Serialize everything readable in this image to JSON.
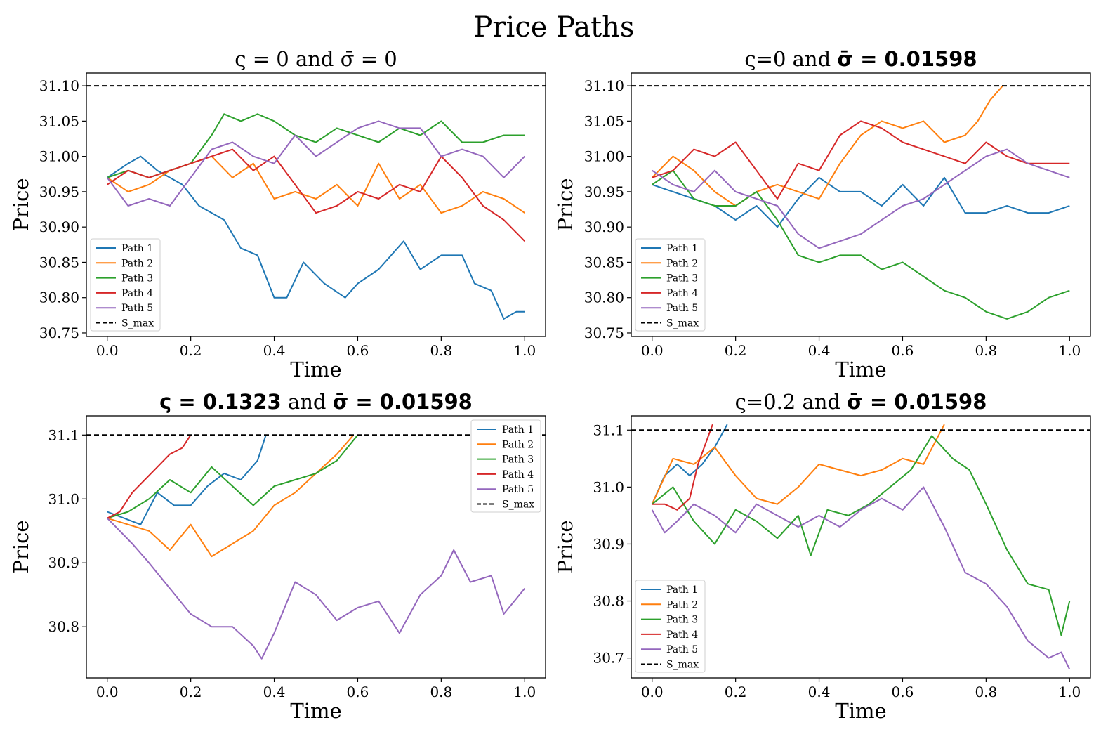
{
  "figure": {
    "title": "Price Paths"
  },
  "colors": {
    "Path 1": "#1f77b4",
    "Path 2": "#ff7f0e",
    "Path 3": "#2ca02c",
    "Path 4": "#d62728",
    "Path 5": "#9467bd",
    "S_max": "#000000"
  },
  "chart_data": [
    {
      "type": "line",
      "title_parts": [
        {
          "t": "ς = 0",
          "bold": false
        },
        {
          "t": " and ",
          "bold": false
        },
        {
          "t": "σ̄ = 0",
          "bold": false
        }
      ],
      "xlabel": "Time",
      "ylabel": "Price",
      "xlim": [
        -0.05,
        1.05
      ],
      "ylim": [
        30.745,
        31.118
      ],
      "xticks": [
        0.0,
        0.2,
        0.4,
        0.6,
        0.8,
        1.0
      ],
      "yticks": [
        30.75,
        30.8,
        30.85,
        30.9,
        30.95,
        31.0,
        31.05,
        31.1
      ],
      "ytick_decimals": 2,
      "s_max": 31.1,
      "legend": "lower-left",
      "series": [
        {
          "name": "Path 1",
          "x": [
            0,
            0.05,
            0.08,
            0.12,
            0.18,
            0.22,
            0.28,
            0.32,
            0.36,
            0.4,
            0.43,
            0.47,
            0.52,
            0.57,
            0.6,
            0.65,
            0.71,
            0.75,
            0.8,
            0.85,
            0.88,
            0.92,
            0.95,
            0.98,
            1.0
          ],
          "y": [
            30.97,
            30.99,
            31.0,
            30.98,
            30.96,
            30.93,
            30.91,
            30.87,
            30.86,
            30.8,
            30.8,
            30.85,
            30.82,
            30.8,
            30.82,
            30.84,
            30.88,
            30.84,
            30.86,
            30.86,
            30.82,
            30.81,
            30.77,
            30.78,
            30.78
          ]
        },
        {
          "name": "Path 2",
          "x": [
            0,
            0.05,
            0.1,
            0.15,
            0.2,
            0.25,
            0.3,
            0.35,
            0.4,
            0.45,
            0.5,
            0.55,
            0.6,
            0.65,
            0.7,
            0.75,
            0.8,
            0.85,
            0.9,
            0.95,
            1.0
          ],
          "y": [
            30.97,
            30.95,
            30.96,
            30.98,
            30.99,
            31.0,
            30.97,
            30.99,
            30.94,
            30.95,
            30.94,
            30.96,
            30.93,
            30.99,
            30.94,
            30.96,
            30.92,
            30.93,
            30.95,
            30.94,
            30.92
          ]
        },
        {
          "name": "Path 3",
          "x": [
            0,
            0.05,
            0.1,
            0.15,
            0.2,
            0.25,
            0.28,
            0.32,
            0.36,
            0.4,
            0.45,
            0.5,
            0.55,
            0.6,
            0.65,
            0.7,
            0.75,
            0.8,
            0.85,
            0.9,
            0.95,
            1.0
          ],
          "y": [
            30.97,
            30.98,
            30.97,
            30.98,
            30.99,
            31.03,
            31.06,
            31.05,
            31.06,
            31.05,
            31.03,
            31.02,
            31.04,
            31.03,
            31.02,
            31.04,
            31.03,
            31.05,
            31.02,
            31.02,
            31.03,
            31.03
          ]
        },
        {
          "name": "Path 4",
          "x": [
            0,
            0.05,
            0.1,
            0.15,
            0.2,
            0.25,
            0.3,
            0.35,
            0.4,
            0.45,
            0.5,
            0.55,
            0.6,
            0.65,
            0.7,
            0.75,
            0.8,
            0.85,
            0.9,
            0.95,
            1.0
          ],
          "y": [
            30.96,
            30.98,
            30.97,
            30.98,
            30.99,
            31.0,
            31.01,
            30.98,
            31.0,
            30.96,
            30.92,
            30.93,
            30.95,
            30.94,
            30.96,
            30.95,
            31.0,
            30.97,
            30.93,
            30.91,
            30.88
          ]
        },
        {
          "name": "Path 5",
          "x": [
            0,
            0.05,
            0.1,
            0.15,
            0.2,
            0.25,
            0.3,
            0.35,
            0.4,
            0.45,
            0.5,
            0.55,
            0.6,
            0.65,
            0.7,
            0.75,
            0.8,
            0.85,
            0.9,
            0.95,
            1.0
          ],
          "y": [
            30.97,
            30.93,
            30.94,
            30.93,
            30.97,
            31.01,
            31.02,
            31.0,
            30.99,
            31.03,
            31.0,
            31.02,
            31.04,
            31.05,
            31.04,
            31.04,
            31.0,
            31.01,
            31.0,
            30.97,
            31.0
          ]
        }
      ]
    },
    {
      "type": "line",
      "title_parts": [
        {
          "t": "ς=0",
          "bold": false
        },
        {
          "t": " and ",
          "bold": false
        },
        {
          "t": "σ̄ = 0.01598",
          "bold": true
        }
      ],
      "xlabel": "Time",
      "ylabel": "Price",
      "xlim": [
        -0.05,
        1.05
      ],
      "ylim": [
        30.745,
        31.118
      ],
      "xticks": [
        0.0,
        0.2,
        0.4,
        0.6,
        0.8,
        1.0
      ],
      "yticks": [
        30.75,
        30.8,
        30.85,
        30.9,
        30.95,
        31.0,
        31.05,
        31.1
      ],
      "ytick_decimals": 2,
      "s_max": 31.1,
      "legend": "lower-left",
      "series": [
        {
          "name": "Path 1",
          "x": [
            0,
            0.05,
            0.1,
            0.15,
            0.2,
            0.25,
            0.3,
            0.35,
            0.4,
            0.45,
            0.5,
            0.55,
            0.6,
            0.65,
            0.7,
            0.75,
            0.8,
            0.85,
            0.9,
            0.95,
            1.0
          ],
          "y": [
            30.96,
            30.95,
            30.94,
            30.93,
            30.91,
            30.93,
            30.9,
            30.94,
            30.97,
            30.95,
            30.95,
            30.93,
            30.96,
            30.93,
            30.97,
            30.92,
            30.92,
            30.93,
            30.92,
            30.92,
            30.93
          ]
        },
        {
          "name": "Path 2",
          "x": [
            0,
            0.05,
            0.1,
            0.15,
            0.2,
            0.25,
            0.3,
            0.35,
            0.4,
            0.45,
            0.5,
            0.55,
            0.6,
            0.65,
            0.7,
            0.75,
            0.78,
            0.81,
            0.84
          ],
          "y": [
            30.97,
            31.0,
            30.98,
            30.95,
            30.93,
            30.95,
            30.96,
            30.95,
            30.94,
            30.99,
            31.03,
            31.05,
            31.04,
            31.05,
            31.02,
            31.03,
            31.05,
            31.08,
            31.1
          ]
        },
        {
          "name": "Path 3",
          "x": [
            0,
            0.05,
            0.1,
            0.15,
            0.2,
            0.25,
            0.3,
            0.35,
            0.4,
            0.45,
            0.5,
            0.55,
            0.6,
            0.65,
            0.7,
            0.75,
            0.8,
            0.85,
            0.9,
            0.95,
            1.0
          ],
          "y": [
            30.96,
            30.98,
            30.94,
            30.93,
            30.93,
            30.95,
            30.91,
            30.86,
            30.85,
            30.86,
            30.86,
            30.84,
            30.85,
            30.83,
            30.81,
            30.8,
            30.78,
            30.77,
            30.78,
            30.8,
            30.81
          ]
        },
        {
          "name": "Path 4",
          "x": [
            0,
            0.05,
            0.1,
            0.15,
            0.2,
            0.25,
            0.3,
            0.35,
            0.4,
            0.45,
            0.5,
            0.55,
            0.6,
            0.65,
            0.7,
            0.75,
            0.8,
            0.85,
            0.9,
            0.95,
            1.0
          ],
          "y": [
            30.97,
            30.98,
            31.01,
            31.0,
            31.02,
            30.98,
            30.94,
            30.99,
            30.98,
            31.03,
            31.05,
            31.04,
            31.02,
            31.01,
            31.0,
            30.99,
            31.02,
            31.0,
            30.99,
            30.99,
            30.99
          ]
        },
        {
          "name": "Path 5",
          "x": [
            0,
            0.05,
            0.1,
            0.15,
            0.2,
            0.25,
            0.3,
            0.35,
            0.4,
            0.45,
            0.5,
            0.55,
            0.6,
            0.65,
            0.7,
            0.75,
            0.8,
            0.85,
            0.9,
            0.95,
            1.0
          ],
          "y": [
            30.98,
            30.96,
            30.95,
            30.98,
            30.95,
            30.94,
            30.93,
            30.89,
            30.87,
            30.88,
            30.89,
            30.91,
            30.93,
            30.94,
            30.96,
            30.98,
            31.0,
            31.01,
            30.99,
            30.98,
            30.97
          ]
        }
      ]
    },
    {
      "type": "line",
      "title_parts": [
        {
          "t": "ς = 0.1323",
          "bold": true
        },
        {
          "t": " and ",
          "bold": false
        },
        {
          "t": "σ̄ = 0.01598",
          "bold": true
        }
      ],
      "xlabel": "Time",
      "ylabel": "Price",
      "xlim": [
        -0.05,
        1.05
      ],
      "ylim": [
        30.72,
        31.13
      ],
      "xticks": [
        0.0,
        0.2,
        0.4,
        0.6,
        0.8,
        1.0
      ],
      "yticks": [
        30.8,
        30.9,
        31.0,
        31.1
      ],
      "ytick_decimals": 1,
      "s_max": 31.1,
      "legend": "upper-right",
      "series": [
        {
          "name": "Path 1",
          "x": [
            0,
            0.04,
            0.08,
            0.12,
            0.16,
            0.2,
            0.24,
            0.28,
            0.32,
            0.36,
            0.38
          ],
          "y": [
            30.98,
            30.97,
            30.96,
            31.01,
            30.99,
            30.99,
            31.02,
            31.04,
            31.03,
            31.06,
            31.1
          ]
        },
        {
          "name": "Path 2",
          "x": [
            0,
            0.05,
            0.1,
            0.15,
            0.2,
            0.25,
            0.3,
            0.35,
            0.4,
            0.45,
            0.5,
            0.55,
            0.59
          ],
          "y": [
            30.97,
            30.96,
            30.95,
            30.92,
            30.96,
            30.91,
            30.93,
            30.95,
            30.99,
            31.01,
            31.04,
            31.07,
            31.1
          ]
        },
        {
          "name": "Path 3",
          "x": [
            0,
            0.05,
            0.1,
            0.15,
            0.2,
            0.25,
            0.3,
            0.35,
            0.4,
            0.45,
            0.5,
            0.55,
            0.6
          ],
          "y": [
            30.97,
            30.98,
            31.0,
            31.03,
            31.01,
            31.05,
            31.02,
            30.99,
            31.02,
            31.03,
            31.04,
            31.06,
            31.1
          ]
        },
        {
          "name": "Path 4",
          "x": [
            0,
            0.03,
            0.06,
            0.09,
            0.12,
            0.15,
            0.18,
            0.2
          ],
          "y": [
            30.97,
            30.98,
            31.01,
            31.03,
            31.05,
            31.07,
            31.08,
            31.1
          ]
        },
        {
          "name": "Path 5",
          "x": [
            0,
            0.03,
            0.06,
            0.1,
            0.15,
            0.2,
            0.25,
            0.3,
            0.35,
            0.37,
            0.4,
            0.45,
            0.5,
            0.55,
            0.6,
            0.65,
            0.7,
            0.75,
            0.8,
            0.83,
            0.87,
            0.92,
            0.95,
            1.0
          ],
          "y": [
            30.97,
            30.95,
            30.93,
            30.9,
            30.86,
            30.82,
            30.8,
            30.8,
            30.77,
            30.75,
            30.79,
            30.87,
            30.85,
            30.81,
            30.83,
            30.84,
            30.79,
            30.85,
            30.88,
            30.92,
            30.87,
            30.88,
            30.82,
            30.86
          ]
        }
      ]
    },
    {
      "type": "line",
      "title_parts": [
        {
          "t": "ς=0.2",
          "bold": false
        },
        {
          "t": " and ",
          "bold": false
        },
        {
          "t": "σ̄ = 0.01598",
          "bold": true
        }
      ],
      "xlabel": "Time",
      "ylabel": "Price",
      "xlim": [
        -0.05,
        1.05
      ],
      "ylim": [
        30.665,
        31.125
      ],
      "xticks": [
        0.0,
        0.2,
        0.4,
        0.6,
        0.8,
        1.0
      ],
      "yticks": [
        30.7,
        30.8,
        30.9,
        31.0,
        31.1
      ],
      "ytick_decimals": 1,
      "s_max": 31.1,
      "legend": "lower-left",
      "series": [
        {
          "name": "Path 1",
          "x": [
            0,
            0.03,
            0.06,
            0.09,
            0.12,
            0.15,
            0.18
          ],
          "y": [
            30.97,
            31.02,
            31.04,
            31.02,
            31.04,
            31.07,
            31.11
          ]
        },
        {
          "name": "Path 2",
          "x": [
            0,
            0.05,
            0.1,
            0.15,
            0.2,
            0.25,
            0.3,
            0.35,
            0.4,
            0.45,
            0.5,
            0.55,
            0.6,
            0.65,
            0.7
          ],
          "y": [
            30.97,
            31.05,
            31.04,
            31.07,
            31.02,
            30.98,
            30.97,
            31.0,
            31.04,
            31.03,
            31.02,
            31.03,
            31.05,
            31.04,
            31.11
          ]
        },
        {
          "name": "Path 3",
          "x": [
            0,
            0.05,
            0.1,
            0.15,
            0.2,
            0.25,
            0.3,
            0.35,
            0.38,
            0.42,
            0.47,
            0.52,
            0.57,
            0.62,
            0.67,
            0.72,
            0.76,
            0.8,
            0.85,
            0.9,
            0.95,
            0.98,
            1.0
          ],
          "y": [
            30.97,
            31.0,
            30.94,
            30.9,
            30.96,
            30.94,
            30.91,
            30.95,
            30.88,
            30.96,
            30.95,
            30.97,
            31.0,
            31.03,
            31.09,
            31.05,
            31.03,
            30.97,
            30.89,
            30.83,
            30.82,
            30.74,
            30.8
          ]
        },
        {
          "name": "Path 4",
          "x": [
            0,
            0.03,
            0.06,
            0.09,
            0.11,
            0.13,
            0.145
          ],
          "y": [
            30.97,
            30.97,
            30.96,
            30.98,
            31.04,
            31.08,
            31.11
          ]
        },
        {
          "name": "Path 5",
          "x": [
            0,
            0.03,
            0.06,
            0.1,
            0.15,
            0.2,
            0.25,
            0.3,
            0.35,
            0.4,
            0.45,
            0.5,
            0.55,
            0.6,
            0.65,
            0.7,
            0.75,
            0.8,
            0.85,
            0.9,
            0.95,
            0.98,
            1.0
          ],
          "y": [
            30.96,
            30.92,
            30.94,
            30.97,
            30.95,
            30.92,
            30.97,
            30.95,
            30.93,
            30.95,
            30.93,
            30.96,
            30.98,
            30.96,
            31.0,
            30.93,
            30.85,
            30.83,
            30.79,
            30.73,
            30.7,
            30.71,
            30.68
          ]
        }
      ]
    }
  ]
}
